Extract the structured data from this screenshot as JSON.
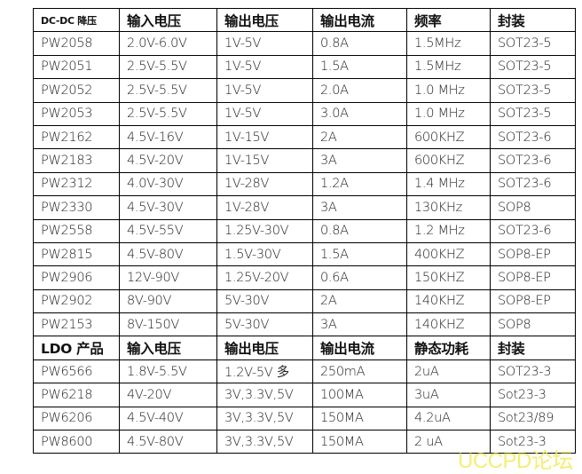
{
  "dcdc": {
    "header": [
      "DC-DC 降压",
      "输入电压",
      "输出电压",
      "输出电流",
      "频率",
      "封装"
    ],
    "rows": [
      [
        "PW2058",
        "2.0V-6.0V",
        "1V-5V",
        "0.8A",
        "1.5MHz",
        "SOT23-5"
      ],
      [
        "PW2051",
        "2.5V-5.5V",
        "1V-5V",
        "1.5A",
        "1.5MHz",
        "SOT23-5"
      ],
      [
        "PW2052",
        "2.5V-5.5V",
        "1V-5V",
        "2.0A",
        "1.0 MHz",
        "SOT23-5"
      ],
      [
        "PW2053",
        "2.5V-5.5V",
        "1V-5V",
        "3.0A",
        "1.0 MHz",
        "SOT23-5"
      ],
      [
        "PW2162",
        "4.5V-16V",
        "1V-15V",
        "2A",
        "600KHZ",
        "SOT23-6"
      ],
      [
        "PW2183",
        "4.5V-20V",
        "1V-15V",
        "3A",
        "600KHZ",
        "SOT23-6"
      ],
      [
        "PW2312",
        "4.0V-30V",
        "1V-28V",
        "1.2A",
        "1.4 MHz",
        "SOT23-6"
      ],
      [
        "PW2330",
        "4.5V-30V",
        "1V-28V",
        "3A",
        "130KHz",
        "SOP8"
      ],
      [
        "PW2558",
        "4.5V-55V",
        "1.25V-30V",
        "0.8A",
        "1.2 MHz",
        "SOT23-6"
      ],
      [
        "PW2815",
        "4.5V-80V",
        "1.5V-30V",
        "1.5A",
        "400KHZ",
        "SOP8-EP"
      ],
      [
        "PW2906",
        "12V-90V",
        "1.25V-20V",
        "0.6A",
        "150KHZ",
        "SOP8-EP"
      ],
      [
        "PW2902",
        "8V-90V",
        "5V-30V",
        "2A",
        "140KHZ",
        "SOP8-EP"
      ],
      [
        "PW2153",
        "8V-150V",
        "5V-30V",
        "3A",
        "140KHZ",
        "SOP8"
      ]
    ]
  },
  "ldo": {
    "header": [
      "LDO 产品",
      "输入电压",
      "输出电压",
      "输出电流",
      "静态功耗",
      "封装"
    ],
    "rows": [
      [
        "PW6566",
        "1.8V-5.5V",
        "1.2V-5V 多",
        "250mA",
        "2uA",
        "SOT23-3"
      ],
      [
        "PW6218",
        "4V-20V",
        "3V,3.3V,5V",
        "100MA",
        "3uA",
        "Sot23-3"
      ],
      [
        "PW6206",
        "4.5V-40V",
        "3V,3.3V,5V",
        "150MA",
        "4.2uA",
        "Sot23/89"
      ],
      [
        "PW8600",
        "4.5V-80V",
        "3V,3.3V,5V",
        "150MA",
        "2 uA",
        "Sot23-3"
      ]
    ]
  },
  "watermark": "UCCPD论坛"
}
